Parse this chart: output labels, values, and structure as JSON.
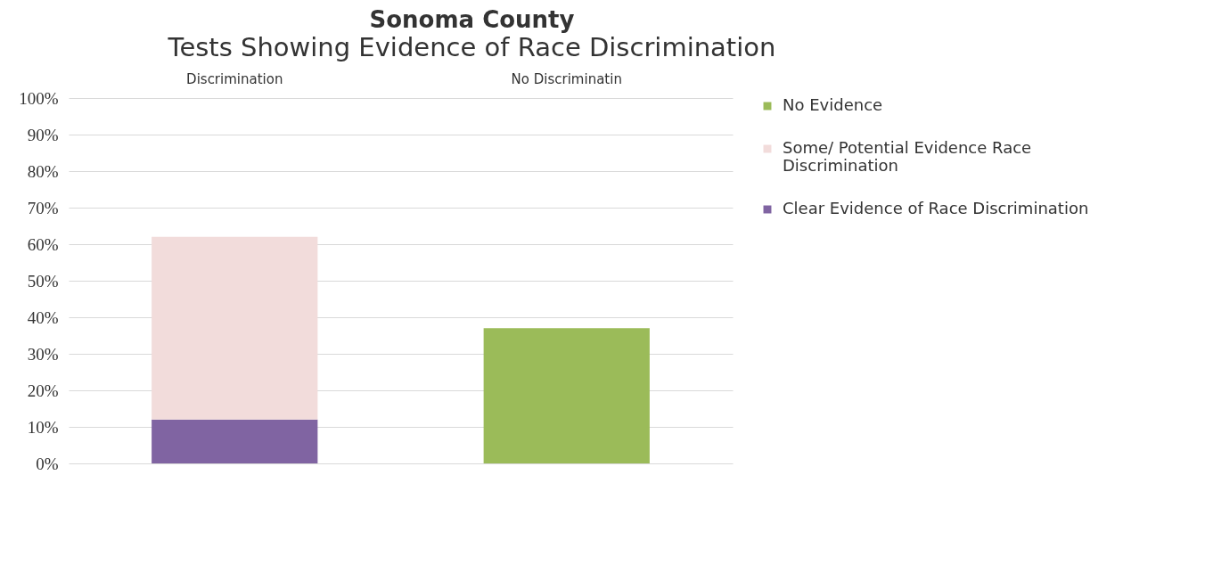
{
  "chart_data": {
    "type": "bar",
    "title": "Sonoma County",
    "subtitle": "Tests Showing Evidence of Race Discrimination",
    "categories": [
      "Discrimination",
      "No Discriminatin"
    ],
    "stacked": true,
    "series": [
      {
        "name": "Clear Evidence of Race Discrimination",
        "color": "#8064a2",
        "values": [
          12,
          null
        ]
      },
      {
        "name": "Some/ Potential Evidence Race Discrimination",
        "color": "#f2dcdb",
        "values": [
          50,
          null
        ]
      },
      {
        "name": "No Evidence",
        "color": "#9bbb59",
        "values": [
          null,
          37
        ]
      }
    ],
    "ylim": [
      0,
      100
    ],
    "yticks": [
      {
        "value": 0,
        "label": "0%"
      },
      {
        "value": 10,
        "label": "10%"
      },
      {
        "value": 20,
        "label": "20%"
      },
      {
        "value": 30,
        "label": "30%"
      },
      {
        "value": 40,
        "label": "40%"
      },
      {
        "value": 50,
        "label": "50%"
      },
      {
        "value": 60,
        "label": "60%"
      },
      {
        "value": 70,
        "label": "70%"
      },
      {
        "value": 80,
        "label": "80%"
      },
      {
        "value": 90,
        "label": "90%"
      },
      {
        "value": 100,
        "label": "100%"
      }
    ],
    "grid": "y",
    "legend": "right"
  }
}
